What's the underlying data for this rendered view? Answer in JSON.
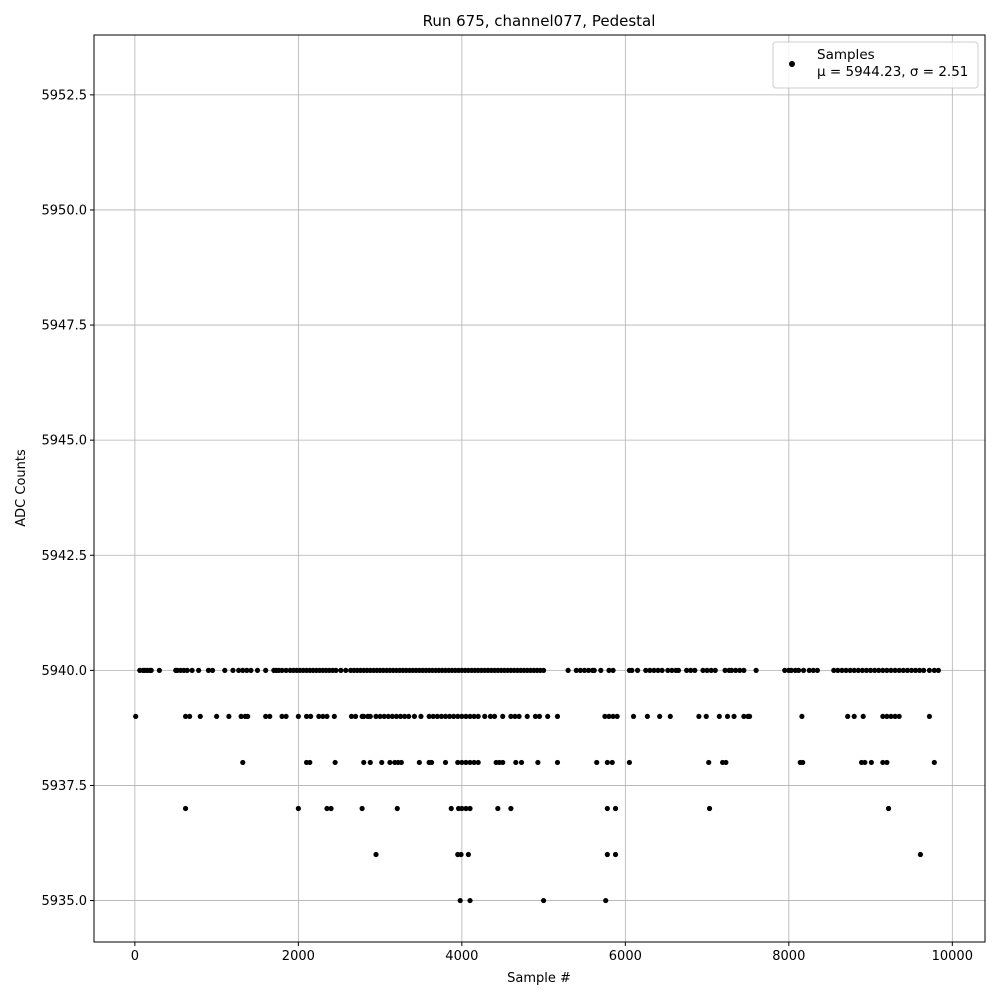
{
  "chart_data": {
    "type": "scatter",
    "title": "Run 675, channel077, Pedestal",
    "xlabel": "Sample #",
    "ylabel": "ADC Counts",
    "xlim": [
      -500,
      10400
    ],
    "ylim": [
      5934.1,
      5953.8
    ],
    "xticks": [
      0,
      2000,
      4000,
      6000,
      8000,
      10000
    ],
    "xtick_labels": [
      "0",
      "2000",
      "4000",
      "6000",
      "8000",
      "10000"
    ],
    "yticks": [
      5935.0,
      5937.5,
      5940.0,
      5942.5,
      5945.0,
      5947.5,
      5950.0,
      5952.5
    ],
    "ytick_labels": [
      "5935.0",
      "5937.5",
      "5940.0",
      "5942.5",
      "5945.0",
      "5947.5",
      "5950.0",
      "5952.5"
    ],
    "grid": true,
    "legend_position": "top-right",
    "marker_color": "#000000",
    "series": [
      {
        "name": "Samples",
        "stat_label": "μ = 5944.23, σ = 2.51",
        "levels": [
          {
            "y": 5935,
            "x": [
              3980,
              4100,
              5000,
              5760
            ]
          },
          {
            "y": 5936,
            "x": [
              2950,
              3950,
              3990,
              4080,
              5780,
              5880,
              9610
            ]
          },
          {
            "y": 5937,
            "x": [
              620,
              2000,
              2350,
              2400,
              2780,
              3210,
              3870,
              3960,
              4000,
              4050,
              4100,
              4440,
              4600,
              5780,
              5880,
              7030,
              9220
            ]
          },
          {
            "y": 5938,
            "x": [
              1320,
              2100,
              2140,
              2450,
              2800,
              2880,
              3020,
              3120,
              3180,
              3220,
              3260,
              3480,
              3600,
              3630,
              3800,
              3950,
              4000,
              4050,
              4100,
              4150,
              4200,
              4420,
              4460,
              4500,
              4660,
              4730,
              4930,
              5170,
              5650,
              5780,
              5840,
              6050,
              7020,
              7190,
              7230,
              8140,
              8170,
              8890,
              8930,
              9010,
              9150,
              9200,
              9780
            ]
          },
          {
            "y": 5939,
            "x": [
              10,
              620,
              670,
              800,
              1000,
              1150,
              1300,
              1350,
              1380,
              1600,
              1650,
              1800,
              1850,
              2000,
              2100,
              2150,
              2250,
              2300,
              2350,
              2440,
              2650,
              2700,
              2780,
              2800,
              2850,
              2880,
              2950,
              3000,
              3050,
              3100,
              3150,
              3200,
              3250,
              3300,
              3350,
              3420,
              3500,
              3600,
              3650,
              3700,
              3750,
              3800,
              3850,
              3900,
              3950,
              4000,
              4050,
              4100,
              4150,
              4200,
              4280,
              4350,
              4400,
              4500,
              4600,
              4650,
              4700,
              4800,
              4900,
              4950,
              5050,
              5170,
              5750,
              5800,
              5850,
              5900,
              6100,
              6270,
              6420,
              6550,
              6900,
              6990,
              7150,
              7250,
              7330,
              7450,
              7500,
              7520,
              8160,
              8720,
              8800,
              8910,
              9150,
              9200,
              9250,
              9300,
              9350,
              9720
            ]
          },
          {
            "y": 5940,
            "x": [
              60,
              100,
              120,
              150,
              180,
              200,
              300,
              500,
              520,
              560,
              600,
              640,
              700,
              780,
              900,
              950,
              1100,
              1200,
              1270,
              1320,
              1370,
              1420,
              1500,
              1600,
              1700,
              1730,
              1760,
              1800,
              1850,
              1900,
              1940,
              1980,
              2020,
              2060,
              2100,
              2140,
              2180,
              2220,
              2260,
              2300,
              2340,
              2380,
              2420,
              2460,
              2520,
              2580,
              2640,
              2680,
              2720,
              2760,
              2800,
              2840,
              2880,
              2920,
              2960,
              3000,
              3040,
              3080,
              3120,
              3160,
              3200,
              3240,
              3280,
              3320,
              3360,
              3400,
              3440,
              3480,
              3520,
              3560,
              3600,
              3640,
              3680,
              3720,
              3760,
              3800,
              3840,
              3880,
              3920,
              3960,
              4000,
              4040,
              4080,
              4120,
              4160,
              4200,
              4240,
              4280,
              4320,
              4360,
              4400,
              4440,
              4480,
              4520,
              4560,
              4600,
              4640,
              4680,
              4720,
              4760,
              4800,
              4840,
              4880,
              4920,
              4960,
              5000,
              5300,
              5400,
              5450,
              5500,
              5550,
              5600,
              5620,
              5700,
              5800,
              5850,
              6050,
              6080,
              6150,
              6250,
              6300,
              6350,
              6400,
              6450,
              6520,
              6570,
              6620,
              6650,
              6750,
              6800,
              6850,
              6950,
              7000,
              7050,
              7100,
              7220,
              7270,
              7300,
              7350,
              7400,
              7450,
              7600,
              7950,
              8000,
              8030,
              8080,
              8120,
              8180,
              8250,
              8300,
              8350,
              8550,
              8600,
              8650,
              8700,
              8750,
              8800,
              8850,
              8900,
              8950,
              9000,
              9050,
              9100,
              9150,
              9200,
              9250,
              9300,
              9350,
              9400,
              9450,
              9500,
              9550,
              9600,
              9650,
              9720,
              9780,
              9830
            ]
          }
        ]
      }
    ]
  }
}
